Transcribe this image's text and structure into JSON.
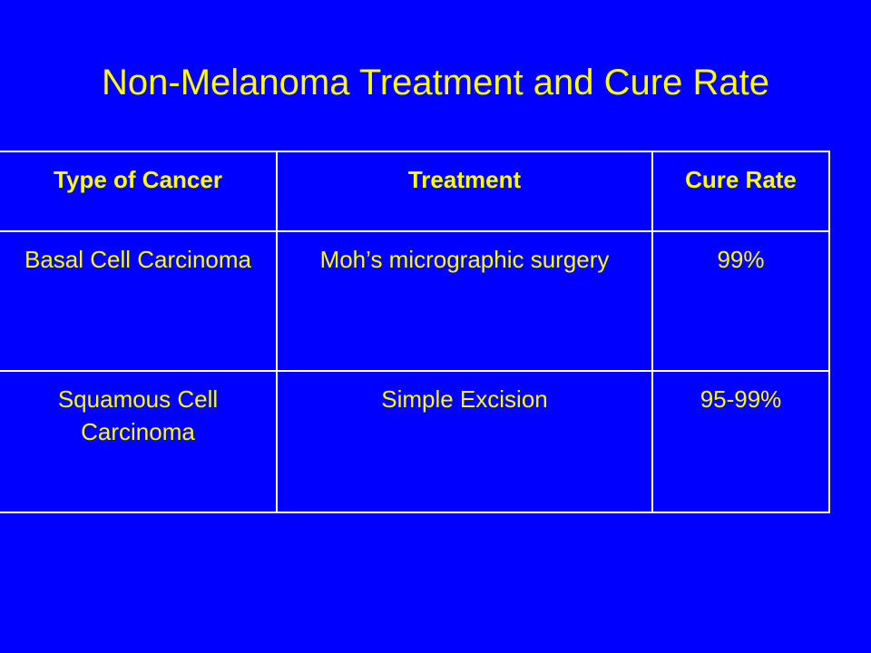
{
  "slide": {
    "title": "Non-Melanoma Treatment and Cure Rate",
    "background_color": "#0000FF",
    "text_color": "#FFFF00",
    "border_color": "#FFFFFF"
  },
  "table": {
    "headers": [
      "Type of Cancer",
      "Treatment",
      "Cure Rate"
    ],
    "rows": [
      [
        "Basal Cell Carcinoma",
        "Moh’s micrographic surgery",
        "99%"
      ],
      [
        "Squamous Cell Carcinoma",
        "Simple Excision",
        "95-99%"
      ]
    ]
  }
}
